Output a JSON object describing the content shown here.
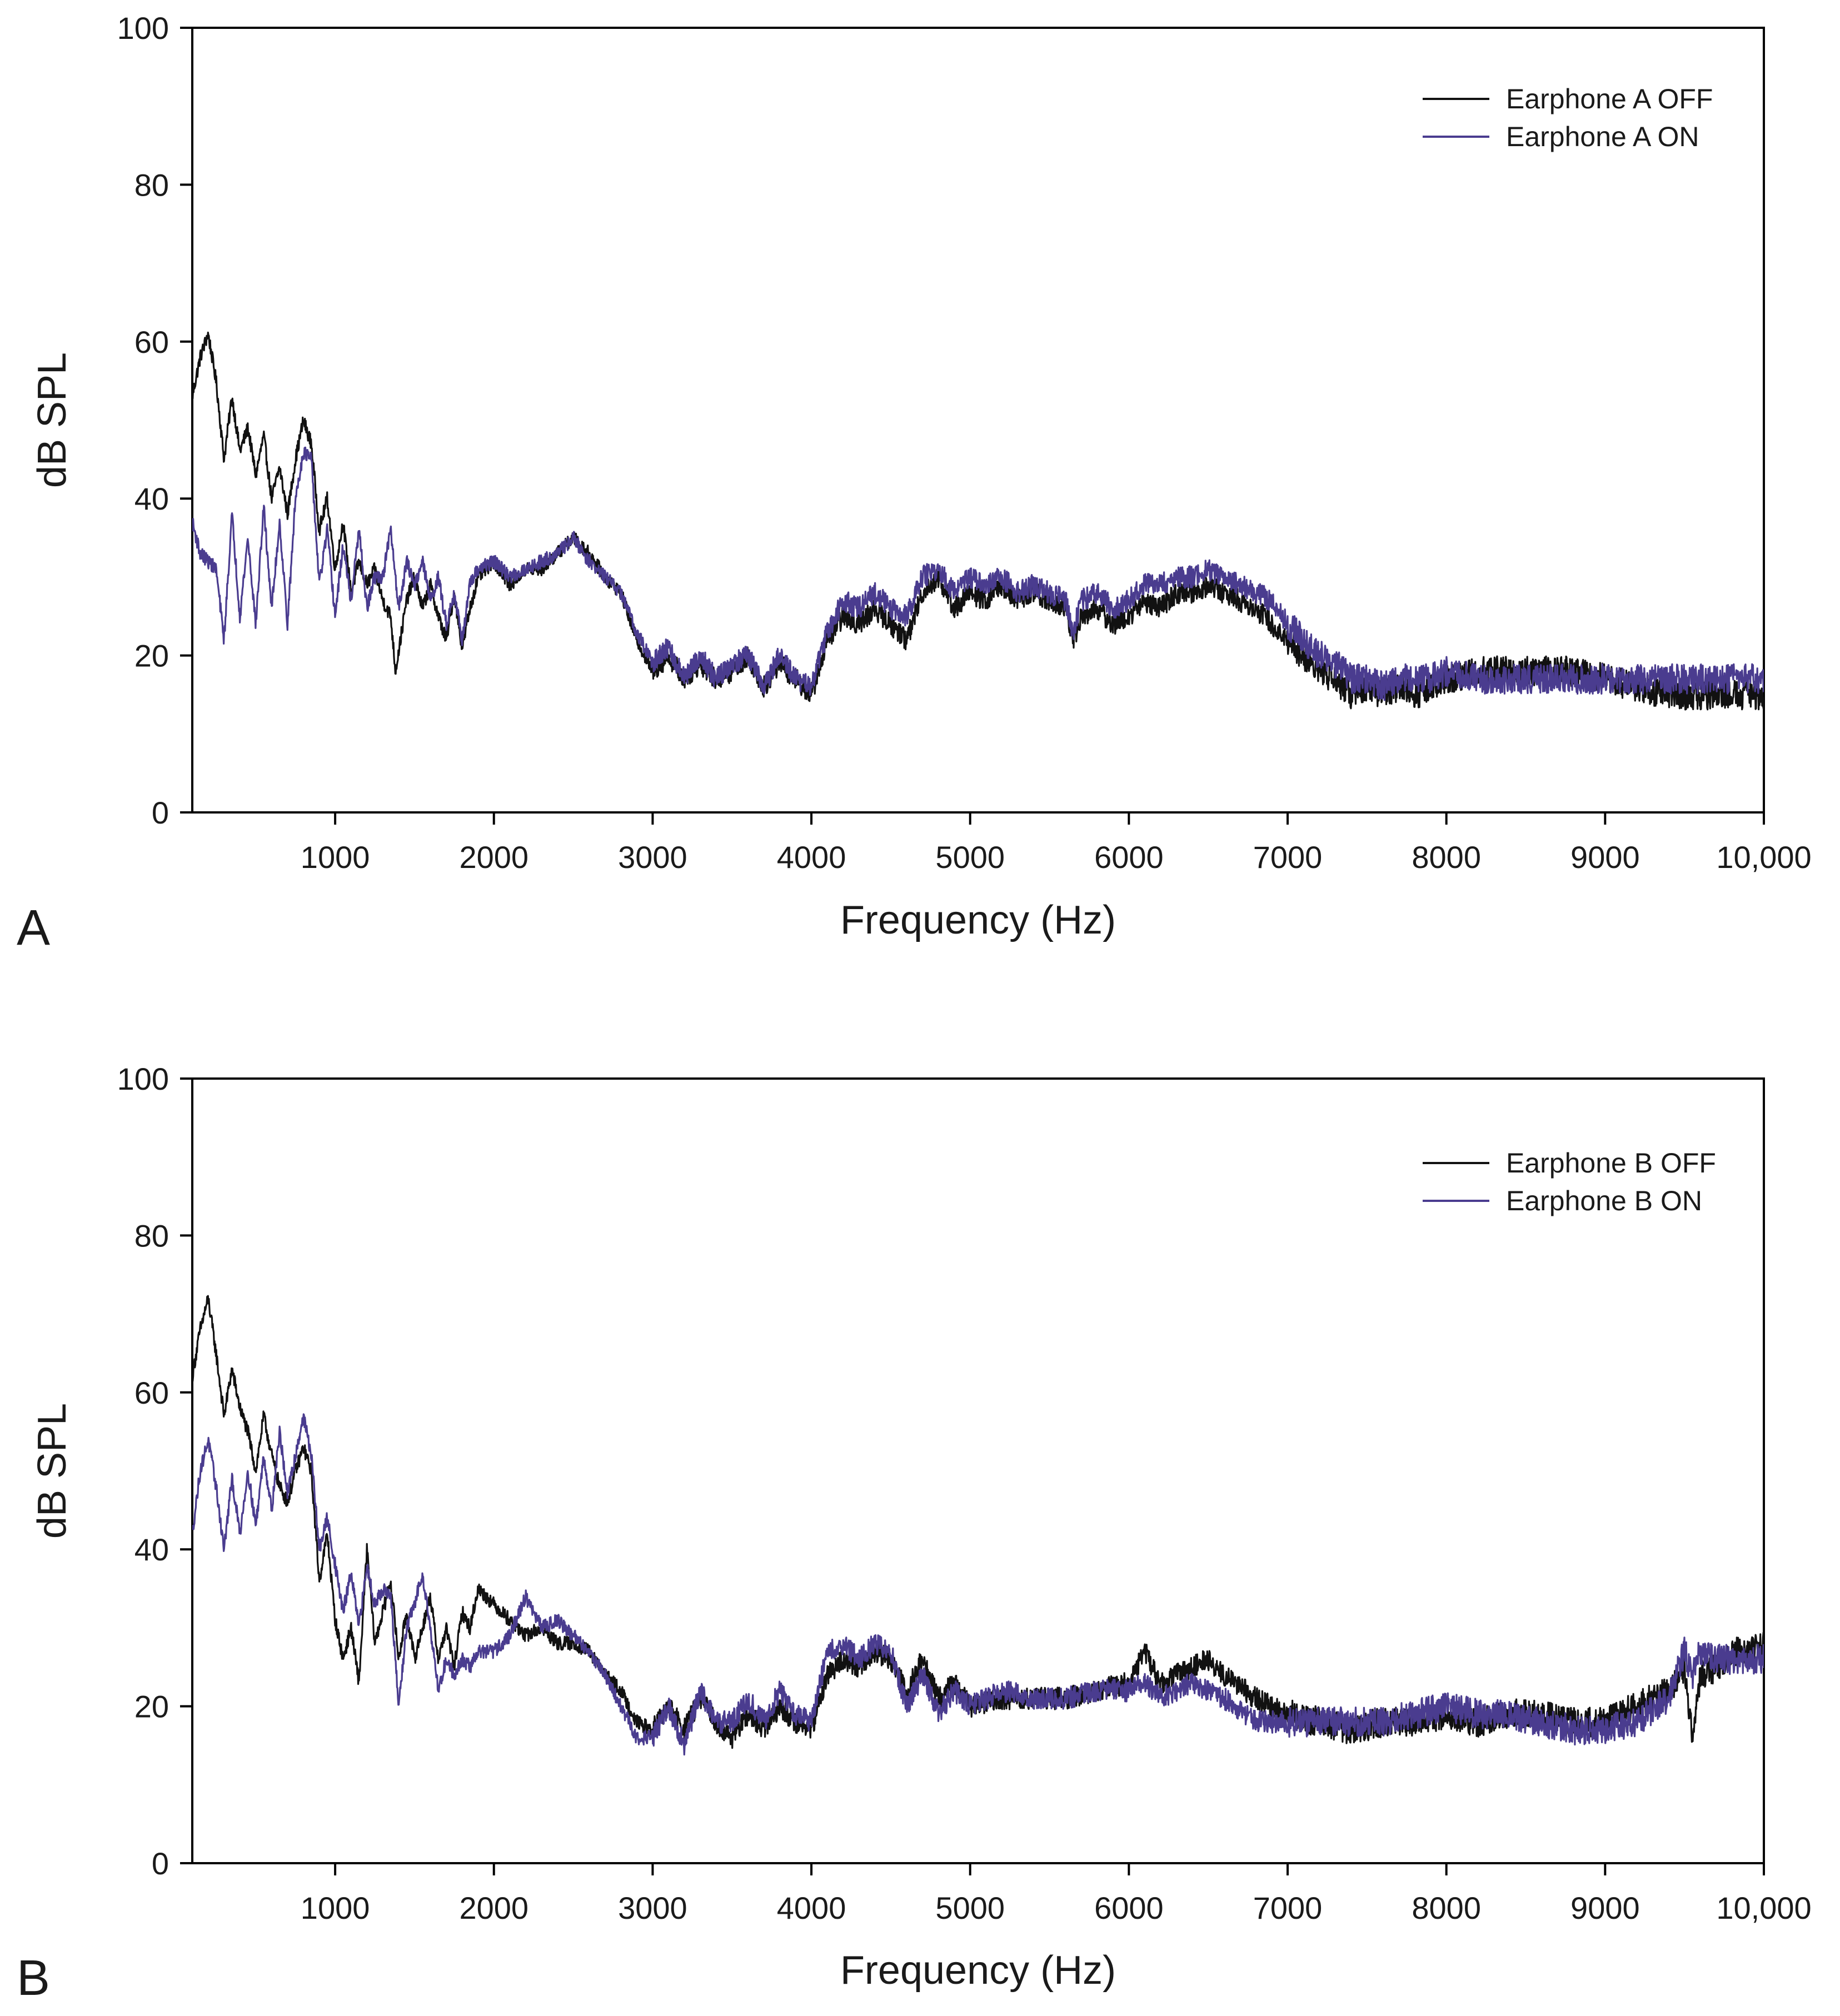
{
  "colors": {
    "off": "#111111",
    "on": "#4a3c8f"
  },
  "chart_data": [
    {
      "type": "line",
      "panel_label": "A",
      "xlabel": "Frequency (Hz)",
      "ylabel": "dB SPL",
      "xlim": [
        100,
        10000
      ],
      "ylim": [
        0,
        100
      ],
      "xticks": [
        1000,
        2000,
        3000,
        4000,
        5000,
        6000,
        7000,
        8000,
        9000,
        10000
      ],
      "xtick_labels": [
        "1000",
        "2000",
        "3000",
        "4000",
        "5000",
        "6000",
        "7000",
        "8000",
        "9000",
        "10,000"
      ],
      "yticks": [
        0,
        20,
        40,
        60,
        80,
        100
      ],
      "ytick_labels": [
        "0",
        "20",
        "40",
        "60",
        "80",
        "100"
      ],
      "grid": false,
      "legend_position": "top-right",
      "series": [
        {
          "name": "Earphone A OFF",
          "key": "off",
          "x": [
            100,
            150,
            200,
            250,
            300,
            350,
            400,
            450,
            500,
            550,
            600,
            650,
            700,
            750,
            800,
            850,
            900,
            950,
            1000,
            1050,
            1100,
            1150,
            1200,
            1250,
            1300,
            1350,
            1380,
            1450,
            1500,
            1550,
            1600,
            1650,
            1700,
            1750,
            1800,
            1850,
            1900,
            2000,
            2100,
            2200,
            2300,
            2400,
            2500,
            2600,
            2700,
            2800,
            2900,
            3000,
            3100,
            3200,
            3300,
            3400,
            3500,
            3600,
            3700,
            3800,
            3900,
            4000,
            4100,
            4200,
            4300,
            4400,
            4500,
            4600,
            4700,
            4800,
            4900,
            5000,
            5100,
            5200,
            5300,
            5400,
            5500,
            5600,
            5650,
            5700,
            5800,
            5900,
            6000,
            6100,
            6200,
            6300,
            6400,
            6500,
            6600,
            6700,
            6800,
            6900,
            7000,
            7100,
            7200,
            7300,
            7400,
            7500,
            7600,
            7700,
            7800,
            7900,
            8000,
            8200,
            8400,
            8600,
            8800,
            9000,
            9200,
            9400,
            9600,
            9800,
            10000
          ],
          "y": [
            53,
            58,
            61,
            55,
            45,
            53,
            46,
            49,
            43,
            48,
            40,
            44,
            38,
            45,
            50,
            47,
            36,
            40,
            31,
            37,
            28,
            32,
            29,
            31,
            27,
            25,
            18,
            27,
            30,
            26,
            29,
            25,
            22,
            28,
            21,
            26,
            30,
            32,
            29,
            31,
            31,
            33,
            35,
            33,
            30,
            28,
            22,
            18,
            20,
            17,
            19,
            17,
            18,
            20,
            16,
            19,
            17,
            15,
            22,
            25,
            24,
            26,
            24,
            22,
            28,
            30,
            26,
            28,
            27,
            29,
            27,
            28,
            27,
            26,
            22,
            25,
            26,
            24,
            25,
            27,
            26,
            28,
            28,
            29,
            28,
            27,
            26,
            24,
            22,
            20,
            18,
            17,
            15,
            16,
            15,
            16,
            15,
            16,
            17,
            18,
            18,
            18,
            18,
            17,
            16,
            15,
            15,
            15,
            15
          ]
        },
        {
          "name": "Earphone A ON",
          "key": "on",
          "x": [
            100,
            150,
            200,
            250,
            300,
            350,
            400,
            450,
            500,
            550,
            600,
            650,
            700,
            750,
            800,
            850,
            900,
            950,
            1000,
            1050,
            1100,
            1150,
            1200,
            1250,
            1300,
            1350,
            1400,
            1450,
            1500,
            1550,
            1600,
            1650,
            1700,
            1750,
            1800,
            1850,
            1900,
            2000,
            2100,
            2200,
            2300,
            2400,
            2500,
            2600,
            2700,
            2800,
            2900,
            3000,
            3100,
            3200,
            3300,
            3400,
            3500,
            3600,
            3700,
            3800,
            3900,
            4000,
            4100,
            4200,
            4300,
            4400,
            4500,
            4600,
            4700,
            4800,
            4900,
            5000,
            5100,
            5200,
            5300,
            5400,
            5500,
            5600,
            5650,
            5700,
            5800,
            5900,
            6000,
            6100,
            6200,
            6300,
            6400,
            6500,
            6600,
            6700,
            6800,
            6900,
            7000,
            7100,
            7200,
            7300,
            7400,
            7500,
            7600,
            7700,
            7800,
            7900,
            8000,
            8200,
            8400,
            8600,
            8800,
            9000,
            9200,
            9400,
            9600,
            9800,
            10000
          ],
          "y": [
            37,
            33,
            32,
            31,
            22,
            38,
            25,
            35,
            24,
            39,
            26,
            37,
            24,
            40,
            46,
            45,
            29,
            36,
            25,
            34,
            27,
            36,
            26,
            30,
            30,
            36,
            26,
            32,
            29,
            32,
            27,
            30,
            24,
            28,
            22,
            29,
            31,
            32,
            30,
            31,
            32,
            33,
            35,
            32,
            30,
            28,
            23,
            19,
            21,
            17,
            20,
            17,
            19,
            20,
            16,
            20,
            17,
            16,
            23,
            27,
            26,
            28,
            26,
            25,
            30,
            31,
            28,
            30,
            29,
            30,
            28,
            29,
            28,
            27,
            23,
            27,
            28,
            26,
            27,
            29,
            29,
            30,
            30,
            31,
            30,
            29,
            28,
            27,
            24,
            22,
            20,
            19,
            17,
            17,
            16,
            17,
            17,
            17,
            18,
            17,
            17,
            17,
            17,
            17,
            17,
            17,
            17,
            17,
            17
          ]
        }
      ]
    },
    {
      "type": "line",
      "panel_label": "B",
      "xlabel": "Frequency (Hz)",
      "ylabel": "dB SPL",
      "xlim": [
        100,
        10000
      ],
      "ylim": [
        0,
        100
      ],
      "xticks": [
        1000,
        2000,
        3000,
        4000,
        5000,
        6000,
        7000,
        8000,
        9000,
        10000
      ],
      "xtick_labels": [
        "1000",
        "2000",
        "3000",
        "4000",
        "5000",
        "6000",
        "7000",
        "8000",
        "9000",
        "10,000"
      ],
      "yticks": [
        0,
        20,
        40,
        60,
        80,
        100
      ],
      "ytick_labels": [
        "0",
        "20",
        "40",
        "60",
        "80",
        "100"
      ],
      "grid": false,
      "legend_position": "top-right",
      "series": [
        {
          "name": "Earphone B OFF",
          "key": "off",
          "x": [
            100,
            150,
            200,
            250,
            300,
            350,
            400,
            450,
            500,
            550,
            600,
            650,
            700,
            750,
            800,
            850,
            900,
            950,
            1000,
            1050,
            1100,
            1150,
            1200,
            1250,
            1300,
            1350,
            1400,
            1450,
            1500,
            1550,
            1600,
            1650,
            1700,
            1750,
            1800,
            1850,
            1900,
            2000,
            2100,
            2200,
            2300,
            2400,
            2500,
            2600,
            2700,
            2800,
            2900,
            3000,
            3100,
            3200,
            3300,
            3400,
            3500,
            3600,
            3700,
            3800,
            3900,
            4000,
            4100,
            4200,
            4300,
            4400,
            4500,
            4600,
            4700,
            4800,
            4900,
            5000,
            5200,
            5400,
            5600,
            5800,
            6000,
            6100,
            6200,
            6400,
            6500,
            6600,
            6800,
            7000,
            7200,
            7400,
            7600,
            7800,
            8000,
            8200,
            8400,
            8600,
            8800,
            9000,
            9200,
            9400,
            9500,
            9550,
            9600,
            9700,
            9800,
            9900,
            10000
          ],
          "y": [
            62,
            68,
            72,
            65,
            57,
            63,
            58,
            55,
            50,
            57,
            52,
            48,
            46,
            50,
            53,
            50,
            36,
            42,
            31,
            26,
            30,
            23,
            40,
            28,
            32,
            36,
            26,
            32,
            26,
            30,
            34,
            26,
            30,
            25,
            32,
            30,
            35,
            33,
            31,
            29,
            30,
            28,
            28,
            27,
            24,
            22,
            18,
            17,
            20,
            17,
            21,
            18,
            16,
            19,
            17,
            20,
            18,
            17,
            24,
            26,
            25,
            27,
            26,
            22,
            26,
            21,
            23,
            20,
            21,
            21,
            21,
            22,
            23,
            27,
            23,
            25,
            26,
            24,
            21,
            19,
            18,
            17,
            18,
            18,
            19,
            18,
            19,
            19,
            18,
            18,
            20,
            22,
            25,
            16,
            24,
            25,
            27,
            27,
            28
          ]
        },
        {
          "name": "Earphone B ON",
          "key": "on",
          "x": [
            100,
            150,
            200,
            250,
            300,
            350,
            400,
            450,
            500,
            550,
            600,
            650,
            700,
            750,
            800,
            850,
            900,
            950,
            1000,
            1050,
            1100,
            1150,
            1200,
            1250,
            1300,
            1350,
            1400,
            1450,
            1500,
            1550,
            1600,
            1650,
            1700,
            1750,
            1800,
            1850,
            1900,
            2000,
            2100,
            2200,
            2300,
            2400,
            2500,
            2600,
            2700,
            2800,
            2900,
            3000,
            3100,
            3200,
            3300,
            3400,
            3500,
            3600,
            3700,
            3800,
            3900,
            4000,
            4100,
            4200,
            4300,
            4400,
            4500,
            4600,
            4700,
            4800,
            4900,
            5000,
            5200,
            5400,
            5600,
            5800,
            6000,
            6100,
            6200,
            6400,
            6500,
            6600,
            6800,
            7000,
            7200,
            7400,
            7600,
            7800,
            8000,
            8200,
            8400,
            8600,
            8800,
            9000,
            9200,
            9400,
            9500,
            9550,
            9600,
            9700,
            9800,
            9900,
            10000
          ],
          "y": [
            42,
            50,
            54,
            48,
            40,
            49,
            42,
            50,
            43,
            52,
            45,
            55,
            47,
            52,
            57,
            52,
            40,
            44,
            38,
            32,
            37,
            30,
            38,
            33,
            35,
            34,
            20,
            30,
            33,
            37,
            30,
            22,
            26,
            24,
            26,
            25,
            27,
            27,
            29,
            34,
            30,
            31,
            29,
            27,
            24,
            20,
            16,
            16,
            20,
            15,
            22,
            18,
            18,
            21,
            18,
            22,
            19,
            18,
            27,
            28,
            26,
            28,
            27,
            20,
            24,
            19,
            22,
            20,
            22,
            21,
            21,
            22,
            22,
            23,
            21,
            23,
            22,
            21,
            18,
            18,
            18,
            18,
            18,
            19,
            20,
            19,
            19,
            18,
            17,
            17,
            18,
            21,
            27,
            24,
            27,
            26,
            26,
            26,
            26
          ]
        }
      ]
    }
  ]
}
